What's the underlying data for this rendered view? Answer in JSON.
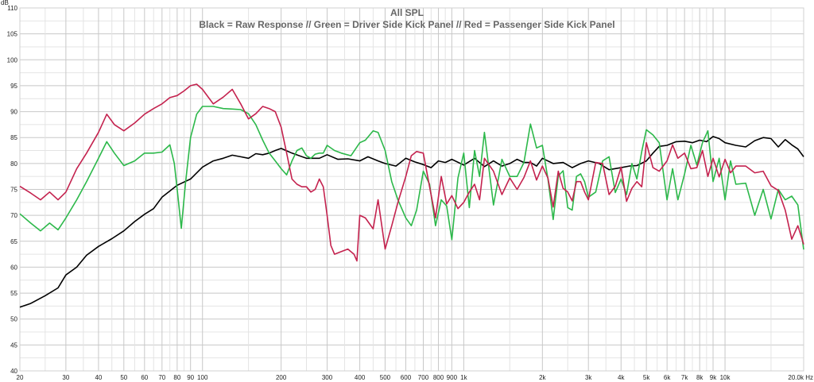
{
  "chart_data": {
    "type": "line",
    "title": "All SPL",
    "subtitle": "Black = Raw Response // Green = Driver Side Kick Panel // Red = Passenger Side Kick Panel",
    "ylabel": "dB",
    "xlabel": "",
    "x_scale": "log",
    "xlim": [
      20,
      20000
    ],
    "ylim": [
      40,
      110
    ],
    "grid": true,
    "y_ticks": [
      40,
      45,
      50,
      55,
      60,
      65,
      70,
      75,
      80,
      85,
      90,
      95,
      100,
      105,
      110
    ],
    "x_ticks": [
      {
        "value": 20,
        "label": "20"
      },
      {
        "value": 30,
        "label": "30"
      },
      {
        "value": 40,
        "label": "40"
      },
      {
        "value": 50,
        "label": "50"
      },
      {
        "value": 60,
        "label": "60"
      },
      {
        "value": 70,
        "label": "70"
      },
      {
        "value": 80,
        "label": "80"
      },
      {
        "value": 90,
        "label": "90"
      },
      {
        "value": 100,
        "label": "100"
      },
      {
        "value": 200,
        "label": "200"
      },
      {
        "value": 300,
        "label": "300"
      },
      {
        "value": 400,
        "label": "400"
      },
      {
        "value": 500,
        "label": "500"
      },
      {
        "value": 600,
        "label": "600"
      },
      {
        "value": 700,
        "label": "700"
      },
      {
        "value": 800,
        "label": "800"
      },
      {
        "value": 900,
        "label": "900"
      },
      {
        "value": 1000,
        "label": "1k"
      },
      {
        "value": 2000,
        "label": "2k"
      },
      {
        "value": 3000,
        "label": "3k"
      },
      {
        "value": 4000,
        "label": "4k"
      },
      {
        "value": 5000,
        "label": "5k"
      },
      {
        "value": 6000,
        "label": "6k"
      },
      {
        "value": 7000,
        "label": "7k"
      },
      {
        "value": 8000,
        "label": "8k"
      },
      {
        "value": 9000,
        "label": "9k"
      },
      {
        "value": 10000,
        "label": "10k"
      },
      {
        "value": 20000,
        "label": "20.0k Hz"
      }
    ],
    "series": [
      {
        "color": "#000000",
        "x": [
          20,
          22,
          25,
          28,
          30,
          33,
          36,
          40,
          45,
          50,
          55,
          60,
          65,
          70,
          80,
          90,
          100,
          110,
          120,
          130,
          140,
          150,
          160,
          170,
          180,
          190,
          200,
          220,
          250,
          280,
          300,
          330,
          360,
          400,
          430,
          470,
          500,
          550,
          600,
          650,
          700,
          750,
          800,
          850,
          900,
          1000,
          1100,
          1200,
          1300,
          1400,
          1500,
          1600,
          1700,
          1800,
          1900,
          2000,
          2200,
          2400,
          2600,
          2800,
          3000,
          3300,
          3600,
          4000,
          4300,
          4600,
          5000,
          5300,
          5600,
          6000,
          6500,
          7000,
          7500,
          8000,
          8500,
          9000,
          9500,
          10000,
          11000,
          12000,
          13000,
          14000,
          15000,
          16000,
          17000,
          18000,
          19000,
          20000
        ],
        "values": [
          52.3,
          53,
          54.5,
          56,
          58.5,
          60,
          62.3,
          64,
          65.5,
          67,
          68.8,
          70.2,
          71.3,
          73.5,
          75.8,
          77,
          79.3,
          80.5,
          81,
          81.6,
          81.3,
          81,
          81.9,
          81.7,
          82,
          82.5,
          82.9,
          82,
          81,
          81,
          81.7,
          80.8,
          80.9,
          80.5,
          81.3,
          80.5,
          80,
          79.5,
          81,
          80.3,
          79.8,
          79.2,
          80.5,
          80.2,
          80.8,
          79.7,
          81,
          79.4,
          80.5,
          79.5,
          80,
          80.8,
          80.2,
          80.2,
          79.5,
          81,
          80,
          80.2,
          79.2,
          80,
          80.5,
          80,
          78.8,
          79.2,
          79.5,
          79.6,
          80.5,
          82,
          83.3,
          83.5,
          84.2,
          84.3,
          84,
          84.5,
          84.2,
          85.2,
          84.8,
          84,
          83.5,
          83.2,
          84.4,
          85,
          84.8,
          83.2,
          84.6,
          83.6,
          82.8,
          81.3
        ]
      },
      {
        "color": "#2cb84a",
        "x": [
          20,
          22,
          24,
          26,
          28,
          30,
          33,
          36,
          40,
          43,
          46,
          50,
          55,
          60,
          65,
          70,
          75,
          78,
          80,
          83,
          86,
          90,
          95,
          100,
          110,
          120,
          130,
          140,
          150,
          160,
          170,
          180,
          190,
          200,
          210,
          220,
          230,
          240,
          250,
          260,
          270,
          280,
          290,
          300,
          320,
          340,
          370,
          400,
          420,
          450,
          470,
          500,
          530,
          560,
          600,
          630,
          660,
          700,
          740,
          780,
          820,
          860,
          900,
          950,
          1000,
          1050,
          1100,
          1150,
          1200,
          1300,
          1400,
          1500,
          1600,
          1700,
          1800,
          1900,
          2000,
          2100,
          2200,
          2300,
          2400,
          2500,
          2600,
          2700,
          2800,
          2900,
          3000,
          3200,
          3400,
          3600,
          3800,
          4000,
          4200,
          4400,
          4600,
          4800,
          5000,
          5300,
          5600,
          6000,
          6300,
          6600,
          7000,
          7400,
          7800,
          8200,
          8600,
          9000,
          9500,
          10000,
          10500,
          11000,
          12000,
          13000,
          14000,
          15000,
          16000,
          17000,
          18000,
          19000,
          20000
        ],
        "values": [
          70.3,
          68.5,
          67,
          68.5,
          67.2,
          69.5,
          73,
          76.5,
          81,
          84.2,
          82,
          79.6,
          80.5,
          82,
          82,
          82.2,
          83.6,
          80,
          75,
          67.5,
          76,
          85,
          89.5,
          91,
          91,
          90.6,
          90.5,
          90.4,
          89.6,
          87.5,
          84.5,
          82,
          80.5,
          79,
          77.8,
          80.5,
          82.5,
          83,
          81.5,
          81,
          81.8,
          82,
          82,
          83.5,
          82.5,
          82,
          81.5,
          84,
          84.5,
          86.3,
          86,
          82.5,
          76.5,
          73,
          69.5,
          68,
          71,
          78.5,
          76,
          68,
          73,
          71.8,
          65.3,
          77.2,
          82,
          71.5,
          82.5,
          77.5,
          86,
          72,
          80.8,
          77.5,
          77.5,
          80.2,
          87.6,
          83,
          83.5,
          77,
          69.2,
          77.6,
          78.6,
          71.5,
          71,
          77.5,
          78,
          76.5,
          73.5,
          74.5,
          80.5,
          81.3,
          74.4,
          77,
          74,
          80,
          77,
          82.3,
          86.5,
          85.5,
          84,
          73,
          79,
          73,
          78,
          83.5,
          79.7,
          84,
          86.3,
          76.5,
          81,
          73,
          80.5,
          76,
          76.2,
          70,
          75,
          69.3,
          75,
          73,
          73.7,
          72,
          63.4
        ]
      },
      {
        "color": "#c4224e",
        "x": [
          20,
          22,
          24,
          26,
          28,
          30,
          33,
          36,
          40,
          43,
          46,
          50,
          55,
          60,
          65,
          70,
          75,
          80,
          85,
          90,
          95,
          100,
          110,
          120,
          130,
          140,
          150,
          160,
          170,
          180,
          190,
          200,
          210,
          220,
          230,
          240,
          250,
          260,
          270,
          280,
          290,
          300,
          310,
          320,
          340,
          360,
          380,
          390,
          400,
          420,
          450,
          470,
          500,
          530,
          560,
          600,
          630,
          660,
          700,
          740,
          780,
          820,
          860,
          900,
          950,
          1000,
          1050,
          1100,
          1150,
          1200,
          1300,
          1400,
          1500,
          1600,
          1700,
          1800,
          1900,
          2000,
          2100,
          2200,
          2300,
          2400,
          2500,
          2600,
          2700,
          2800,
          2900,
          3000,
          3200,
          3400,
          3600,
          3800,
          4000,
          4200,
          4400,
          4600,
          4800,
          5000,
          5300,
          5600,
          6000,
          6300,
          6600,
          7000,
          7400,
          7800,
          8200,
          8600,
          9000,
          9500,
          10000,
          10500,
          11000,
          12000,
          13000,
          14000,
          15000,
          16000,
          17000,
          18000,
          19000,
          20000
        ],
        "values": [
          75.6,
          74.3,
          73,
          74.5,
          73,
          74.5,
          79,
          82,
          86,
          89.5,
          87.5,
          86.3,
          87.8,
          89.5,
          90.6,
          91.5,
          92.7,
          93.1,
          94,
          95,
          95.3,
          94.3,
          91.5,
          92.8,
          94.3,
          91.5,
          88.6,
          89.6,
          91,
          90.6,
          90,
          87,
          82,
          77,
          76,
          75.5,
          75.5,
          74.5,
          75,
          77,
          75.5,
          70,
          64.2,
          62.5,
          63,
          63.5,
          62.5,
          61.2,
          70,
          69.5,
          67.4,
          73,
          63.5,
          68,
          72.5,
          77.5,
          81.5,
          82.3,
          82,
          75.5,
          69.5,
          77.5,
          72.2,
          73.8,
          71.3,
          72.5,
          74.5,
          76,
          73,
          81,
          78.5,
          74,
          77.2,
          75,
          77.3,
          80.5,
          76.8,
          79.5,
          77.2,
          71.6,
          78.5,
          75.2,
          74.5,
          72.8,
          76.5,
          76.5,
          74.5,
          73,
          80.2,
          80,
          74,
          75.6,
          79.3,
          72.7,
          75.2,
          76.5,
          75.5,
          84,
          79.2,
          78.5,
          80.5,
          83.6,
          81,
          82,
          79,
          79.2,
          82.5,
          77.5,
          81,
          77.4,
          80.8,
          78.2,
          79.5,
          79.5,
          78.2,
          78.5,
          75.7,
          74.8,
          71,
          65.4,
          68,
          64.4
        ]
      }
    ]
  }
}
